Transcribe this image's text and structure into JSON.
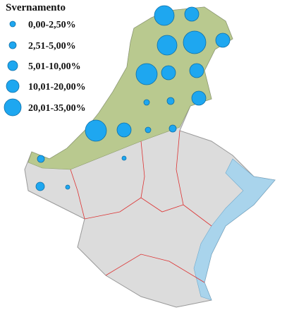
{
  "legend": {
    "title": "Svernamento",
    "entries": [
      "0,00-2,50%",
      "2,51-5,00%",
      "5,01-10,00%",
      "10,01-20,00%",
      "20,01-35,00%"
    ]
  }
}
